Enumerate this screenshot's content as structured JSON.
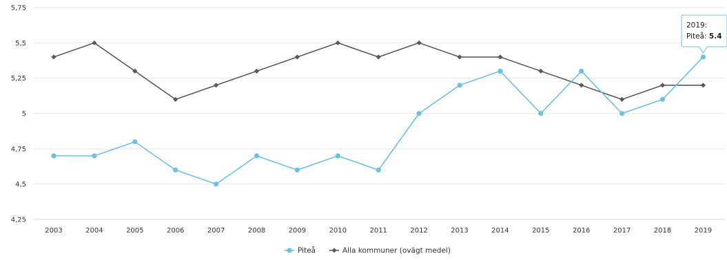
{
  "chart_data": {
    "type": "line",
    "title": "",
    "xlabel": "",
    "ylabel": "",
    "categories": [
      "2003",
      "2004",
      "2005",
      "2006",
      "2007",
      "2008",
      "2009",
      "2010",
      "2011",
      "2012",
      "2013",
      "2014",
      "2015",
      "2016",
      "2017",
      "2018",
      "2019"
    ],
    "y_ticks": [
      "4,25",
      "4,5",
      "4,75",
      "5",
      "5,25",
      "5,5",
      "5,75"
    ],
    "ylim": [
      4.25,
      5.75
    ],
    "grid": "horizontal",
    "legend_position": "bottom-center",
    "series": [
      {
        "name": "Piteå",
        "color": "#6cc0e5",
        "marker": "circle",
        "values": [
          4.7,
          4.7,
          4.8,
          4.6,
          4.5,
          4.7,
          4.6,
          4.7,
          4.6,
          5.0,
          5.2,
          5.3,
          5.0,
          5.3,
          5.0,
          5.1,
          5.4
        ]
      },
      {
        "name": "Alla kommuner (ovägt medel)",
        "color": "#595959",
        "marker": "diamond",
        "values": [
          5.4,
          5.5,
          5.3,
          5.1,
          5.2,
          5.3,
          5.4,
          5.5,
          5.4,
          5.5,
          5.4,
          5.4,
          5.3,
          5.2,
          5.1,
          5.2,
          5.2
        ]
      }
    ],
    "tooltip": {
      "category": "2019",
      "header": "2019:",
      "series_label": "Piteå: ",
      "value_label": "5.4"
    }
  }
}
